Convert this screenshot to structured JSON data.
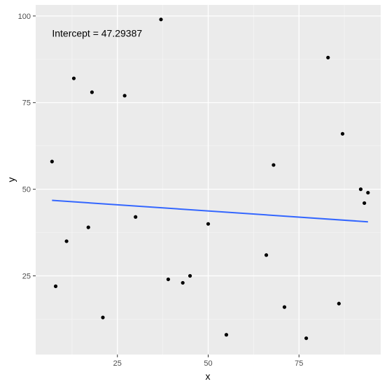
{
  "chart_data": {
    "type": "scatter",
    "xlabel": "x",
    "ylabel": "y",
    "xlim": [
      2.5,
      97.5
    ],
    "ylim": [
      2.3,
      103.2
    ],
    "x_ticks": [
      25,
      50,
      75
    ],
    "y_ticks": [
      25,
      50,
      75,
      100
    ],
    "x_minor": [
      12.5,
      37.5,
      62.5,
      87.5
    ],
    "y_minor": [
      12.5,
      37.5,
      62.5,
      87.5
    ],
    "grid": true,
    "annotation": {
      "text": "Intercept = 47.29387",
      "x": 7,
      "y": 95
    },
    "points": [
      {
        "x": 7,
        "y": 58
      },
      {
        "x": 8,
        "y": 22
      },
      {
        "x": 11,
        "y": 35
      },
      {
        "x": 13,
        "y": 82
      },
      {
        "x": 17,
        "y": 39
      },
      {
        "x": 18,
        "y": 78
      },
      {
        "x": 21,
        "y": 13
      },
      {
        "x": 27,
        "y": 77
      },
      {
        "x": 30,
        "y": 42
      },
      {
        "x": 37,
        "y": 99
      },
      {
        "x": 39,
        "y": 24
      },
      {
        "x": 43,
        "y": 23
      },
      {
        "x": 45,
        "y": 25
      },
      {
        "x": 50,
        "y": 40
      },
      {
        "x": 55,
        "y": 8
      },
      {
        "x": 66,
        "y": 31
      },
      {
        "x": 68,
        "y": 57
      },
      {
        "x": 71,
        "y": 16
      },
      {
        "x": 77,
        "y": 7
      },
      {
        "x": 83,
        "y": 88
      },
      {
        "x": 86,
        "y": 17
      },
      {
        "x": 87,
        "y": 66
      },
      {
        "x": 92,
        "y": 50
      },
      {
        "x": 93,
        "y": 46
      },
      {
        "x": 94,
        "y": 49
      }
    ],
    "trend_line": {
      "x1": 7,
      "y1": 46.8,
      "x2": 94,
      "y2": 40.6,
      "color": "#3366ff"
    },
    "colors": {
      "panel": "#ebebeb",
      "grid_major": "#ffffff",
      "grid_minor": "#f5f5f5",
      "point": "#000000"
    }
  }
}
